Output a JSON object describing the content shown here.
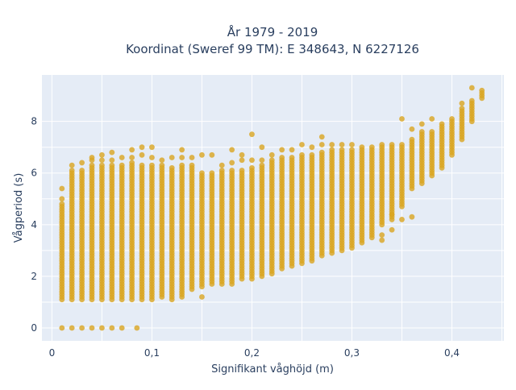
{
  "chart_data": {
    "type": "scatter",
    "title_lines": [
      "År 1979 - 2019",
      "Koordinat (Sweref 99 TM): E 348643, N 6227126"
    ],
    "xlabel": "Signifikant våghöjd (m)",
    "ylabel": "Vågperiod (s)",
    "xlim": [
      -0.01,
      0.452
    ],
    "ylim": [
      -0.5,
      9.8
    ],
    "x_ticks": [
      0,
      0.1,
      0.2,
      0.3,
      0.4
    ],
    "x_tick_labels": [
      "0",
      "0,1",
      "0,2",
      "0,3",
      "0,4"
    ],
    "y_ticks": [
      0,
      2,
      4,
      6,
      8
    ],
    "y_tick_labels": [
      "0",
      "2",
      "4",
      "6",
      "8"
    ],
    "grid": true,
    "plot_background": "#e5ecf6",
    "marker_color": "#daa520",
    "band_step": 0.1,
    "point_step": 0.01,
    "columns": [
      {
        "x": 0.01,
        "min": 1.1,
        "max": 4.8,
        "zero": true,
        "extra": [
          5.0,
          5.4
        ]
      },
      {
        "x": 0.02,
        "min": 1.1,
        "max": 6.1,
        "zero": true,
        "extra": [
          6.3
        ]
      },
      {
        "x": 0.03,
        "min": 1.1,
        "max": 6.1,
        "zero": true,
        "extra": [
          6.4
        ]
      },
      {
        "x": 0.04,
        "min": 1.1,
        "max": 6.3,
        "zero": true,
        "extra": [
          6.5,
          6.6
        ]
      },
      {
        "x": 0.05,
        "min": 1.1,
        "max": 6.3,
        "zero": true,
        "extra": [
          6.5,
          6.7
        ]
      },
      {
        "x": 0.06,
        "min": 1.1,
        "max": 6.3,
        "zero": true,
        "extra": [
          6.5,
          6.8
        ]
      },
      {
        "x": 0.07,
        "min": 1.1,
        "max": 6.3,
        "zero": true,
        "extra": [
          6.6
        ]
      },
      {
        "x": 0.08,
        "min": 1.1,
        "max": 6.4,
        "zero": false,
        "extra": [
          6.6,
          6.9
        ]
      },
      {
        "x": 0.085,
        "min": 0.0,
        "max": 0.0,
        "zero": true,
        "extra": []
      },
      {
        "x": 0.09,
        "min": 1.1,
        "max": 6.3,
        "zero": false,
        "extra": [
          6.7,
          7.0
        ]
      },
      {
        "x": 0.1,
        "min": 1.1,
        "max": 6.3,
        "zero": false,
        "extra": [
          6.6,
          7.0
        ]
      },
      {
        "x": 0.11,
        "min": 1.2,
        "max": 6.3,
        "zero": false,
        "extra": [
          6.5
        ]
      },
      {
        "x": 0.12,
        "min": 1.2,
        "max": 6.2,
        "zero": false,
        "extra": [
          6.6,
          1.1
        ]
      },
      {
        "x": 0.13,
        "min": 1.3,
        "max": 6.3,
        "zero": false,
        "extra": [
          6.6,
          6.9,
          1.2
        ]
      },
      {
        "x": 0.14,
        "min": 1.5,
        "max": 6.3,
        "zero": false,
        "extra": [
          6.6
        ]
      },
      {
        "x": 0.15,
        "min": 1.6,
        "max": 6.0,
        "zero": false,
        "extra": [
          6.7,
          1.2
        ]
      },
      {
        "x": 0.16,
        "min": 1.7,
        "max": 6.0,
        "zero": false,
        "extra": [
          6.7
        ]
      },
      {
        "x": 0.17,
        "min": 1.7,
        "max": 6.1,
        "zero": false,
        "extra": [
          6.3
        ]
      },
      {
        "x": 0.18,
        "min": 1.7,
        "max": 6.1,
        "zero": false,
        "extra": [
          6.4,
          6.9
        ]
      },
      {
        "x": 0.19,
        "min": 1.9,
        "max": 6.1,
        "zero": false,
        "extra": [
          6.5,
          6.7
        ]
      },
      {
        "x": 0.2,
        "min": 1.9,
        "max": 6.2,
        "zero": false,
        "extra": [
          6.5,
          7.5
        ]
      },
      {
        "x": 0.21,
        "min": 2.0,
        "max": 6.3,
        "zero": false,
        "extra": [
          6.5,
          7.0
        ]
      },
      {
        "x": 0.22,
        "min": 2.1,
        "max": 6.5,
        "zero": false,
        "extra": [
          6.7
        ]
      },
      {
        "x": 0.23,
        "min": 2.3,
        "max": 6.6,
        "zero": false,
        "extra": [
          6.9
        ]
      },
      {
        "x": 0.24,
        "min": 2.4,
        "max": 6.6,
        "zero": false,
        "extra": [
          6.9
        ]
      },
      {
        "x": 0.25,
        "min": 2.5,
        "max": 6.7,
        "zero": false,
        "extra": [
          7.1
        ]
      },
      {
        "x": 0.26,
        "min": 2.6,
        "max": 6.7,
        "zero": false,
        "extra": [
          7.0
        ]
      },
      {
        "x": 0.27,
        "min": 2.8,
        "max": 6.8,
        "zero": false,
        "extra": [
          7.1,
          7.4
        ]
      },
      {
        "x": 0.28,
        "min": 2.9,
        "max": 6.9,
        "zero": false,
        "extra": [
          7.1
        ]
      },
      {
        "x": 0.29,
        "min": 3.0,
        "max": 6.9,
        "zero": false,
        "extra": [
          7.1
        ]
      },
      {
        "x": 0.3,
        "min": 3.1,
        "max": 6.9,
        "zero": false,
        "extra": [
          7.1
        ]
      },
      {
        "x": 0.31,
        "min": 3.3,
        "max": 7.0,
        "zero": false,
        "extra": []
      },
      {
        "x": 0.32,
        "min": 3.5,
        "max": 7.0,
        "zero": false,
        "extra": []
      },
      {
        "x": 0.33,
        "min": 4.0,
        "max": 7.1,
        "zero": false,
        "extra": [
          3.6,
          3.4
        ]
      },
      {
        "x": 0.34,
        "min": 4.2,
        "max": 7.1,
        "zero": false,
        "extra": [
          3.8,
          4.4
        ]
      },
      {
        "x": 0.35,
        "min": 4.7,
        "max": 7.1,
        "zero": false,
        "extra": [
          4.2,
          8.1
        ]
      },
      {
        "x": 0.36,
        "min": 5.4,
        "max": 7.3,
        "zero": false,
        "extra": [
          4.3,
          7.7
        ]
      },
      {
        "x": 0.37,
        "min": 5.6,
        "max": 7.6,
        "zero": false,
        "extra": [
          7.9
        ]
      },
      {
        "x": 0.38,
        "min": 5.9,
        "max": 7.6,
        "zero": false,
        "extra": [
          8.1
        ]
      },
      {
        "x": 0.39,
        "min": 6.2,
        "max": 7.9,
        "zero": false,
        "extra": []
      },
      {
        "x": 0.4,
        "min": 6.7,
        "max": 8.1,
        "zero": false,
        "extra": []
      },
      {
        "x": 0.41,
        "min": 7.3,
        "max": 8.5,
        "zero": false,
        "extra": [
          8.7
        ]
      },
      {
        "x": 0.42,
        "min": 8.0,
        "max": 8.8,
        "zero": false,
        "extra": [
          9.3
        ]
      },
      {
        "x": 0.43,
        "min": 8.9,
        "max": 9.1,
        "zero": false,
        "extra": [
          9.2
        ]
      }
    ]
  }
}
